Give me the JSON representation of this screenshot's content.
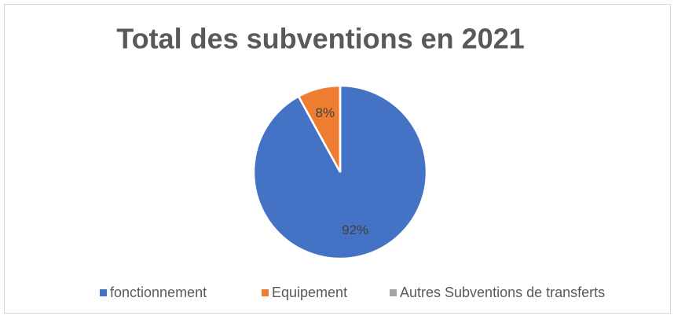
{
  "chart_data": {
    "type": "pie",
    "title": "Total des subventions en 2021",
    "categories": [
      "fonctionnement",
      "Equipement",
      "Autres Subventions de transferts"
    ],
    "values": [
      92,
      8,
      0
    ],
    "value_labels": [
      "92%",
      "8%",
      null
    ],
    "colors": [
      "#4472c4",
      "#ed7d31",
      "#a5a5a5"
    ],
    "legend": "bottom"
  }
}
